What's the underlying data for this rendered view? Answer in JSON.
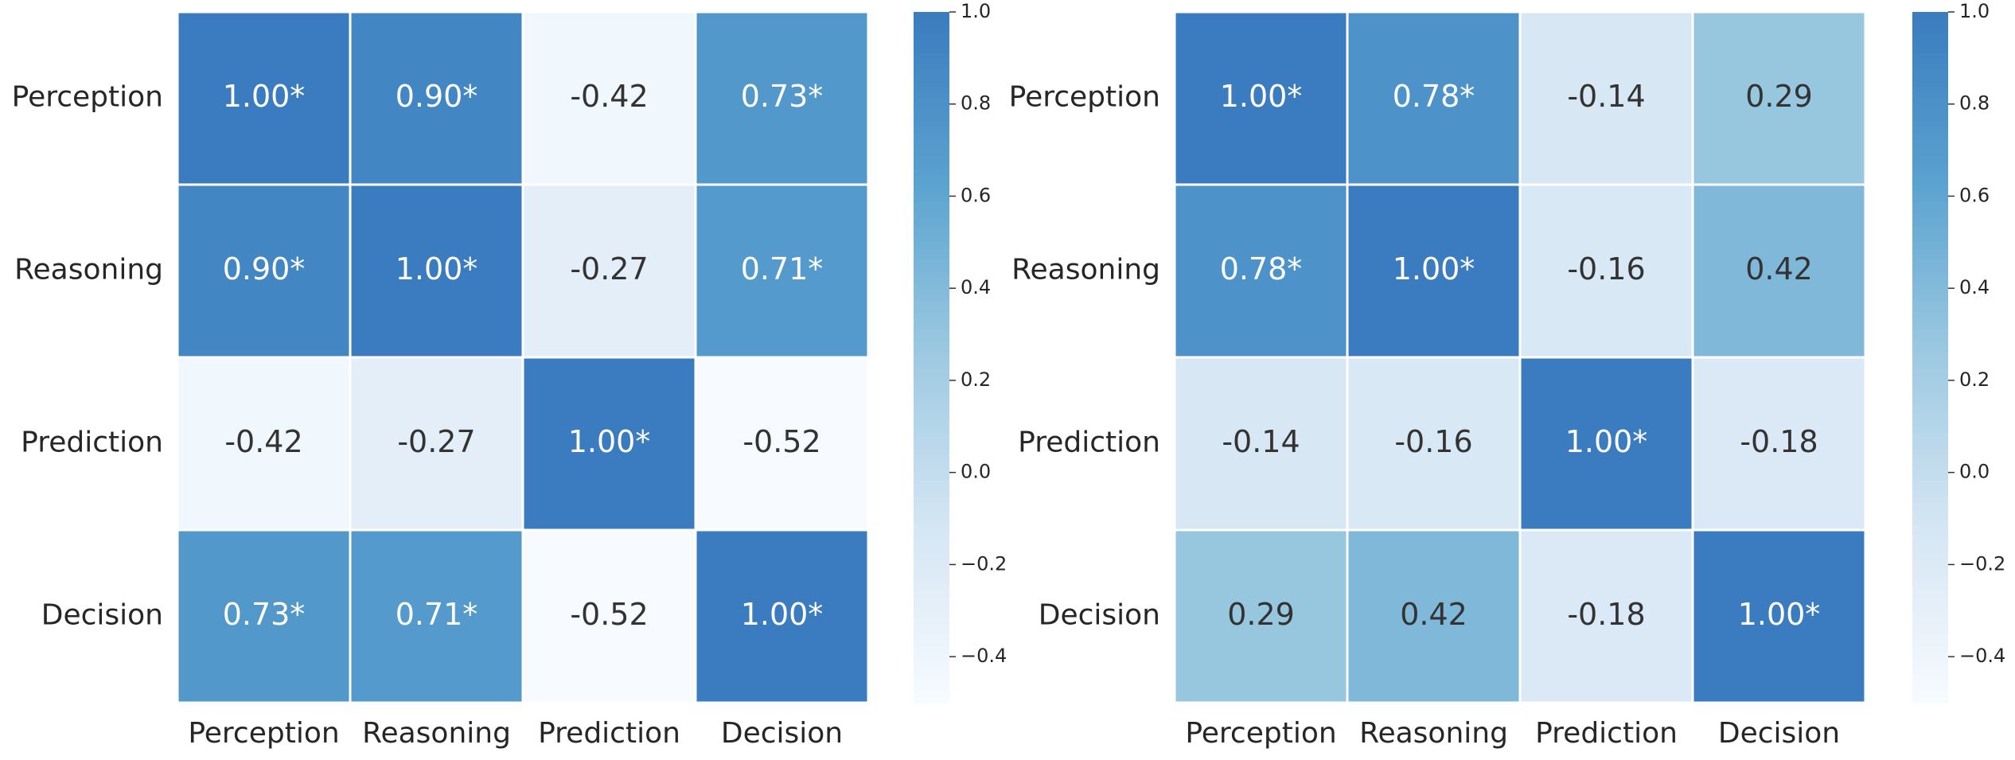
{
  "chart_data": [
    {
      "type": "heatmap",
      "x_categories": [
        "Perception",
        "Reasoning",
        "Prediction",
        "Decision"
      ],
      "y_categories": [
        "Perception",
        "Reasoning",
        "Prediction",
        "Decision"
      ],
      "values": [
        [
          1.0,
          0.9,
          -0.42,
          0.73
        ],
        [
          0.9,
          1.0,
          -0.27,
          0.71
        ],
        [
          -0.42,
          -0.27,
          1.0,
          -0.52
        ],
        [
          0.73,
          0.71,
          -0.52,
          1.0
        ]
      ],
      "value_labels": [
        [
          "1.00*",
          "0.90*",
          "-0.42",
          "0.73*"
        ],
        [
          "0.90*",
          "1.00*",
          "-0.27",
          "0.71*"
        ],
        [
          "-0.42",
          "-0.27",
          "1.00*",
          "-0.52"
        ],
        [
          "0.73*",
          "0.71*",
          "-0.52",
          "1.00*"
        ]
      ],
      "clim": [
        -0.5,
        1.0
      ],
      "cticks": [
        {
          "value": -0.4,
          "label": "−0.4"
        },
        {
          "value": -0.2,
          "label": "−0.2"
        },
        {
          "value": 0,
          "label": "0.0"
        },
        0.2,
        0.4,
        0.6,
        0.8,
        {
          "value": 1,
          "label": "1.0"
        }
      ],
      "colormap": [
        "#f7fbff",
        "#d6e6f4",
        "#9ecae1",
        "#5ba3d0",
        "#3a7cbf"
      ]
    },
    {
      "type": "heatmap",
      "x_categories": [
        "Perception",
        "Reasoning",
        "Prediction",
        "Decision"
      ],
      "y_categories": [
        "Perception",
        "Reasoning",
        "Prediction",
        "Decision"
      ],
      "values": [
        [
          1.0,
          0.78,
          -0.14,
          0.29
        ],
        [
          0.78,
          1.0,
          -0.16,
          0.42
        ],
        [
          -0.14,
          -0.16,
          1.0,
          -0.18
        ],
        [
          0.29,
          0.42,
          -0.18,
          1.0
        ]
      ],
      "value_labels": [
        [
          "1.00*",
          "0.78*",
          "-0.14",
          "0.29"
        ],
        [
          "0.78*",
          "1.00*",
          "-0.16",
          "0.42"
        ],
        [
          "-0.14",
          "-0.16",
          "1.00*",
          "-0.18"
        ],
        [
          "0.29",
          "0.42",
          "-0.18",
          "1.00*"
        ]
      ],
      "clim": [
        -0.5,
        1.0
      ],
      "cticks": [
        {
          "value": -0.4,
          "label": "−0.4"
        },
        {
          "value": -0.2,
          "label": "−0.2"
        },
        {
          "value": 0,
          "label": "0.0"
        },
        0.2,
        0.4,
        0.6,
        0.8,
        {
          "value": 1,
          "label": "1.0"
        }
      ],
      "colormap": [
        "#f7fbff",
        "#d6e6f4",
        "#9ecae1",
        "#5ba3d0",
        "#3a7cbf"
      ]
    }
  ]
}
